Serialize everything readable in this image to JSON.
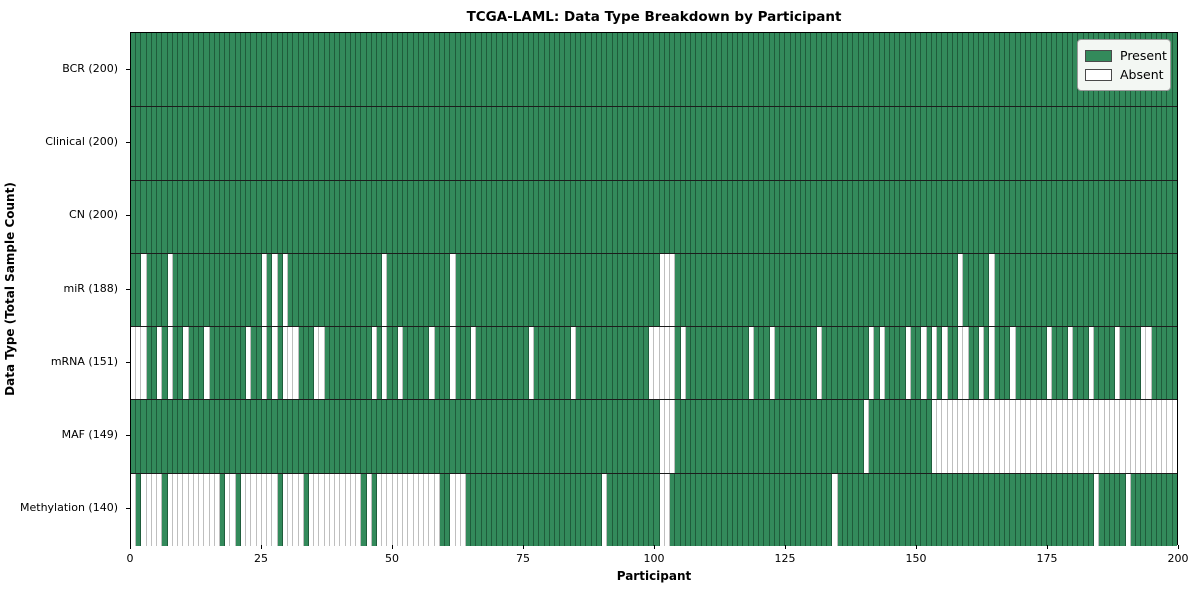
{
  "chart_data": {
    "type": "heatmap",
    "title": "TCGA-LAML: Data Type Breakdown by Participant",
    "xlabel": "Participant",
    "ylabel": "Data Type (Total Sample Count)",
    "n_participants": 200,
    "x_ticks": [
      0,
      25,
      50,
      75,
      100,
      125,
      150,
      175,
      200
    ],
    "legend": {
      "present": "Present",
      "absent": "Absent",
      "position": "upper right"
    },
    "colors": {
      "present": "#338a5b",
      "absent": "#ffffff",
      "present_edge": "#1f5c3b",
      "absent_edge": "#bfbfbf"
    },
    "rows": [
      {
        "label": "BCR (200)",
        "name": "BCR",
        "total": 200,
        "absent": []
      },
      {
        "label": "Clinical (200)",
        "name": "Clinical",
        "total": 200,
        "absent": []
      },
      {
        "label": "CN (200)",
        "name": "CN",
        "total": 200,
        "absent": []
      },
      {
        "label": "miR (188)",
        "name": "miR",
        "total": 188,
        "absent": [
          2,
          7,
          25,
          27,
          29,
          48,
          61,
          101,
          102,
          103,
          158,
          164
        ]
      },
      {
        "label": "mRNA (151)",
        "name": "mRNA",
        "total": 151,
        "absent": [
          0,
          1,
          2,
          5,
          7,
          10,
          14,
          22,
          25,
          27,
          29,
          30,
          31,
          35,
          36,
          46,
          48,
          51,
          57,
          61,
          65,
          76,
          84,
          99,
          100,
          101,
          102,
          103,
          105,
          118,
          122,
          131,
          141,
          143,
          148,
          151,
          153,
          155,
          158,
          159,
          162,
          164,
          168,
          175,
          179,
          183,
          188,
          193,
          194
        ]
      },
      {
        "label": "MAF (149)",
        "name": "MAF",
        "total": 149,
        "absent": [
          101,
          102,
          103,
          140,
          153,
          154,
          155,
          156,
          157,
          158,
          159,
          160,
          161,
          162,
          163,
          164,
          165,
          166,
          167,
          168,
          169,
          170,
          171,
          172,
          173,
          174,
          175,
          176,
          177,
          178,
          179,
          180,
          181,
          182,
          183,
          184,
          185,
          186,
          187,
          188,
          189,
          190,
          191,
          192,
          193,
          194,
          195,
          196,
          197,
          198,
          199
        ]
      },
      {
        "label": "Methylation (140)",
        "name": "Methylation",
        "total": 140,
        "absent": [
          0,
          2,
          3,
          4,
          5,
          7,
          8,
          9,
          10,
          11,
          12,
          13,
          14,
          15,
          16,
          18,
          19,
          21,
          22,
          23,
          24,
          25,
          26,
          27,
          29,
          30,
          31,
          32,
          34,
          35,
          36,
          37,
          38,
          39,
          40,
          41,
          42,
          43,
          45,
          47,
          48,
          49,
          50,
          51,
          52,
          53,
          54,
          55,
          56,
          57,
          58,
          61,
          62,
          63,
          90,
          101,
          102,
          134,
          184,
          190
        ]
      }
    ]
  }
}
